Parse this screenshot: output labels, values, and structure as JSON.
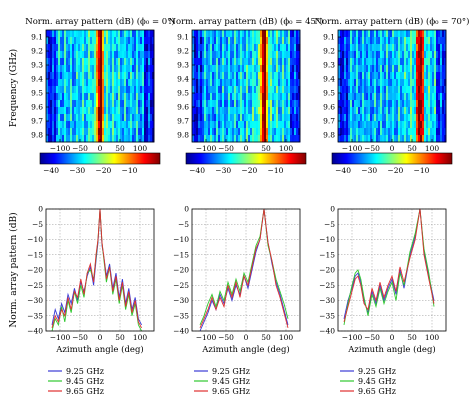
{
  "figure": {
    "heatmap_ylabel": "Frequency (GHz)",
    "line_ylabel": "Norm. array pattern (dB)",
    "line_xlabel": "Azimuth angle (deg)"
  },
  "colorbar": {
    "ticks": [
      "−40",
      "−30",
      "−20",
      "−10"
    ],
    "colors": [
      "#00008f",
      "#0000ff",
      "#00ffff",
      "#ffff00",
      "#ff0000",
      "#800000"
    ]
  },
  "series_colors": [
    "#3b3bd6",
    "#2ec82e",
    "#e03030"
  ],
  "chart_data": [
    {
      "type": "heatmap",
      "title": "Norm. array pattern (dB) (ϕ₀ = 0°)",
      "steer_deg": 0,
      "xlabel": "",
      "ylabel": "Frequency (GHz)",
      "x_ticks": [
        -100,
        -50,
        0,
        50,
        100
      ],
      "xlim": [
        -135,
        135
      ],
      "y_ticks": [
        "9.1",
        "9.2",
        "9.3",
        "9.4",
        "9.5",
        "9.6",
        "9.7",
        "9.8"
      ],
      "ylim": [
        9.05,
        9.85
      ],
      "zlim": [
        -40,
        0
      ]
    },
    {
      "type": "heatmap",
      "title": "Norm. array pattern (dB) (ϕ₀ = 45°)",
      "steer_deg": 45,
      "xlabel": "",
      "ylabel": "",
      "x_ticks": [
        -100,
        -50,
        0,
        50,
        100
      ],
      "xlim": [
        -135,
        135
      ],
      "y_ticks": [
        "9.1",
        "9.2",
        "9.3",
        "9.4",
        "9.5",
        "9.6",
        "9.7",
        "9.8"
      ],
      "ylim": [
        9.05,
        9.85
      ],
      "zlim": [
        -40,
        0
      ]
    },
    {
      "type": "heatmap",
      "title": "Norm. array pattern (dB) (ϕ₀ = 70°)",
      "steer_deg": 70,
      "xlabel": "",
      "ylabel": "",
      "x_ticks": [
        -100,
        -50,
        0,
        50,
        100
      ],
      "xlim": [
        -135,
        135
      ],
      "y_ticks": [
        "9.1",
        "9.2",
        "9.3",
        "9.4",
        "9.5",
        "9.6",
        "9.7",
        "9.8"
      ],
      "ylim": [
        9.05,
        9.85
      ],
      "zlim": [
        -40,
        0
      ]
    },
    {
      "type": "line",
      "steer_deg": 0,
      "xlabel": "Azimuth angle (deg)",
      "ylabel": "Norm. array pattern (dB)",
      "x_ticks": [
        -100,
        -50,
        0,
        50,
        100
      ],
      "xlim": [
        -135,
        135
      ],
      "y_ticks": [
        0,
        -5,
        -10,
        -15,
        -20,
        -25,
        -30,
        -35,
        -40
      ],
      "ylim": [
        -40,
        0
      ],
      "grid": true,
      "legend": "below",
      "series": [
        {
          "name": "9.25 GHz",
          "values": [
            -38,
            -33,
            -36,
            -31,
            -34,
            -28,
            -31,
            -26,
            -30,
            -24,
            -27,
            -22,
            -19,
            -25,
            -17,
            -11,
            0,
            -12,
            -16,
            -22,
            -18,
            -26,
            -21,
            -29,
            -23,
            -31,
            -26,
            -33,
            -29,
            -36,
            -38
          ]
        },
        {
          "name": "9.45 GHz",
          "values": [
            -40,
            -36,
            -38,
            -32,
            -37,
            -30,
            -34,
            -27,
            -31,
            -25,
            -29,
            -21,
            -20,
            -23,
            -16,
            -10,
            0,
            -11,
            -17,
            -24,
            -19,
            -28,
            -23,
            -31,
            -25,
            -33,
            -28,
            -35,
            -31,
            -38,
            -40
          ]
        },
        {
          "name": "9.65 GHz",
          "values": [
            -39,
            -35,
            -37,
            -33,
            -35,
            -29,
            -33,
            -27,
            -29,
            -23,
            -28,
            -21,
            -18,
            -24,
            -15,
            -10,
            0,
            -11,
            -16,
            -23,
            -19,
            -27,
            -22,
            -30,
            -24,
            -32,
            -27,
            -34,
            -30,
            -37,
            -39
          ]
        }
      ],
      "x": [
        -120,
        -112,
        -104,
        -96,
        -88,
        -80,
        -72,
        -64,
        -56,
        -48,
        -40,
        -32,
        -24,
        -16,
        -10,
        -5,
        0,
        5,
        10,
        16,
        24,
        32,
        40,
        48,
        56,
        64,
        72,
        80,
        88,
        96,
        104
      ]
    },
    {
      "type": "line",
      "steer_deg": 45,
      "xlabel": "Azimuth angle (deg)",
      "ylabel": "",
      "x_ticks": [
        -100,
        -50,
        0,
        50,
        100
      ],
      "xlim": [
        -135,
        135
      ],
      "y_ticks": [
        0,
        -5,
        -10,
        -15,
        -20,
        -25,
        -30,
        -35,
        -40
      ],
      "ylim": [
        -40,
        0
      ],
      "grid": true,
      "legend": "below",
      "series": [
        {
          "name": "9.25 GHz",
          "values": [
            -40,
            -37,
            -34,
            -30,
            -33,
            -28,
            -31,
            -26,
            -30,
            -25,
            -28,
            -22,
            -26,
            -20,
            -14,
            -10,
            0,
            -11,
            -18,
            -24,
            -28,
            -33,
            -38
          ]
        },
        {
          "name": "9.45 GHz",
          "values": [
            -38,
            -35,
            -31,
            -28,
            -32,
            -27,
            -30,
            -24,
            -28,
            -23,
            -27,
            -21,
            -24,
            -18,
            -12,
            -9,
            0,
            -12,
            -17,
            -23,
            -27,
            -31,
            -36
          ]
        },
        {
          "name": "9.65 GHz",
          "values": [
            -39,
            -36,
            -33,
            -29,
            -33,
            -29,
            -32,
            -25,
            -29,
            -24,
            -29,
            -22,
            -25,
            -19,
            -13,
            -10,
            0,
            -11,
            -17,
            -25,
            -29,
            -34,
            -39
          ]
        }
      ],
      "x": [
        -115,
        -105,
        -95,
        -85,
        -75,
        -65,
        -55,
        -45,
        -35,
        -25,
        -15,
        -5,
        5,
        15,
        25,
        35,
        45,
        55,
        65,
        75,
        85,
        95,
        105
      ]
    },
    {
      "type": "line",
      "steer_deg": 70,
      "xlabel": "Azimuth angle (deg)",
      "ylabel": "",
      "x_ticks": [
        -100,
        -50,
        0,
        50,
        100
      ],
      "xlim": [
        -135,
        135
      ],
      "y_ticks": [
        0,
        -5,
        -10,
        -15,
        -20,
        -25,
        -30,
        -35,
        -40
      ],
      "ylim": [
        -40,
        0
      ],
      "grid": true,
      "legend": "below",
      "series": [
        {
          "name": "9.25 GHz",
          "values": [
            -36,
            -30,
            -26,
            -22,
            -21,
            -24,
            -30,
            -34,
            -27,
            -31,
            -25,
            -30,
            -26,
            -23,
            -28,
            -20,
            -26,
            -15,
            -9,
            0,
            -14,
            -22,
            -30
          ]
        },
        {
          "name": "9.45 GHz",
          "values": [
            -38,
            -31,
            -25,
            -21,
            -20,
            -23,
            -29,
            -35,
            -28,
            -32,
            -26,
            -31,
            -27,
            -24,
            -30,
            -21,
            -25,
            -14,
            -8,
            0,
            -13,
            -21,
            -32
          ]
        },
        {
          "name": "9.65 GHz",
          "values": [
            -37,
            -32,
            -27,
            -23,
            -22,
            -25,
            -31,
            -33,
            -26,
            -30,
            -24,
            -29,
            -25,
            -22,
            -27,
            -19,
            -24,
            -16,
            -10,
            0,
            -15,
            -23,
            -31
          ]
        }
      ],
      "x": [
        -120,
        -110,
        -100,
        -92,
        -85,
        -78,
        -70,
        -60,
        -50,
        -40,
        -30,
        -20,
        -10,
        0,
        10,
        20,
        30,
        45,
        58,
        70,
        80,
        92,
        105
      ]
    }
  ]
}
